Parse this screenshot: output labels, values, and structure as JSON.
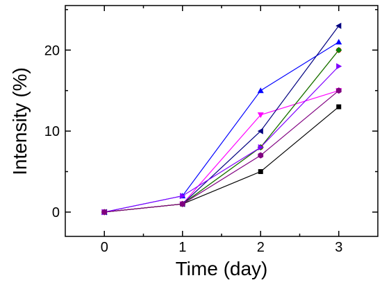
{
  "chart_data": {
    "type": "line",
    "xlabel": "Time (day)",
    "ylabel": "Intensity (%)",
    "xlim": [
      -0.5,
      3.5
    ],
    "ylim": [
      -3,
      25.5
    ],
    "x_ticks": [
      0,
      1,
      2,
      3
    ],
    "y_ticks": [
      0,
      10,
      20
    ],
    "grid": false,
    "series": [
      {
        "marker": "square",
        "color": "#000000",
        "x": [
          0,
          1,
          2,
          3
        ],
        "y": [
          0,
          1,
          5,
          13
        ]
      },
      {
        "marker": "triangle-up",
        "color": "#0000ff",
        "x": [
          0,
          1,
          2,
          3
        ],
        "y": [
          0,
          2,
          15,
          21
        ]
      },
      {
        "marker": "triangle-down",
        "color": "#ff00ff",
        "x": [
          0,
          1,
          2,
          3
        ],
        "y": [
          0,
          1,
          12,
          15
        ]
      },
      {
        "marker": "triangle-left",
        "color": "#000080",
        "x": [
          0,
          1,
          2,
          3
        ],
        "y": [
          0,
          1,
          10,
          23
        ]
      },
      {
        "marker": "circle",
        "color": "#ff0000",
        "x": [
          0,
          1,
          2,
          3
        ],
        "y": [
          0,
          1,
          8,
          20
        ]
      },
      {
        "marker": "diamond",
        "color": "#008000",
        "x": [
          0,
          1,
          2,
          3
        ],
        "y": [
          0,
          1,
          8,
          20
        ]
      },
      {
        "marker": "triangle-right",
        "color": "#8000ff",
        "x": [
          0,
          1,
          2,
          3
        ],
        "y": [
          0,
          2,
          8,
          18
        ]
      },
      {
        "marker": "hexagon",
        "color": "#800080",
        "x": [
          0,
          1,
          2,
          3
        ],
        "y": [
          0,
          1,
          7,
          15
        ]
      }
    ]
  }
}
